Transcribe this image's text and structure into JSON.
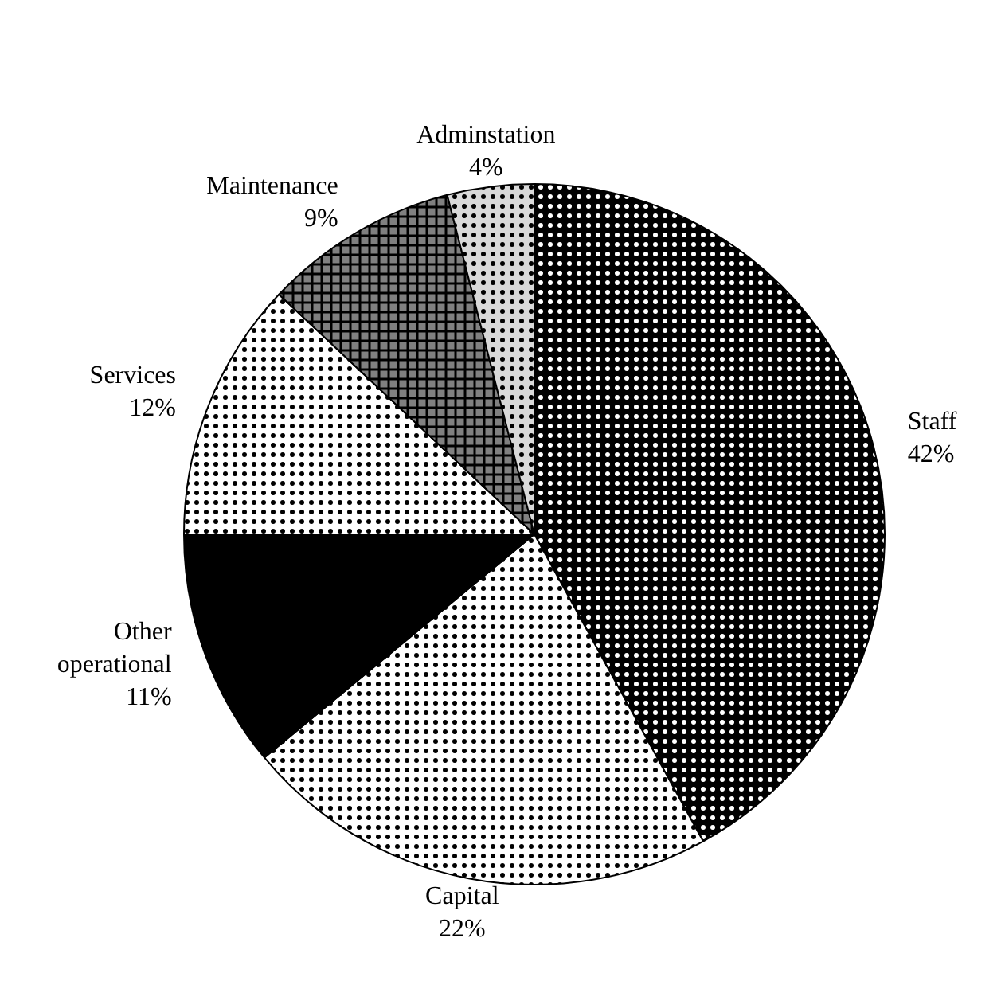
{
  "chart_data": {
    "type": "pie",
    "categories": [
      "Staff",
      "Capital",
      "Other operational",
      "Services",
      "Maintenance",
      "Adminstation"
    ],
    "values": [
      42,
      22,
      11,
      12,
      9,
      4
    ],
    "value_labels": [
      "42%",
      "22%",
      "11%",
      "12%",
      "9%",
      "4%"
    ],
    "colors": [
      "#000000",
      "#ffffff",
      "#000000",
      "#ffffff",
      "#808080",
      "#d9d9d9"
    ]
  }
}
